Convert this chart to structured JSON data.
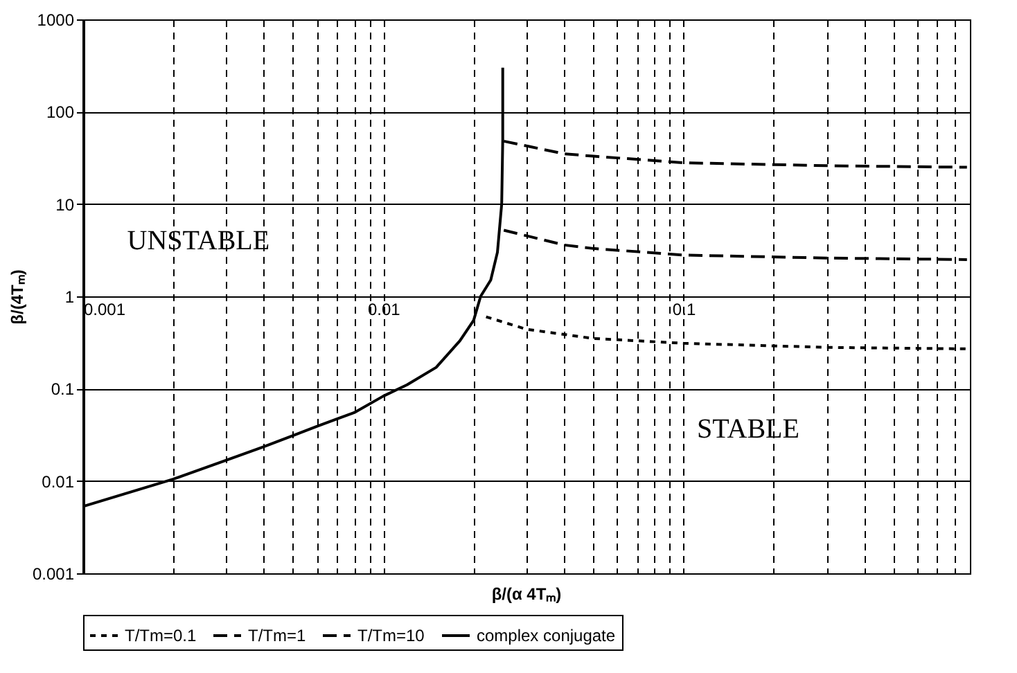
{
  "chart_data": {
    "type": "line",
    "xlabel": "β/(α 4Tₘ)",
    "ylabel": "β/(4Tₘ)",
    "log": "xy",
    "grid": true,
    "legend": "bottom",
    "marker": "none",
    "xlim": [
      0.001,
      0.9
    ],
    "ylim": [
      0.001,
      1000
    ],
    "xticks": [
      0.001,
      {
        "value": 0.002,
        "label": null
      },
      {
        "value": 0.003,
        "label": null
      },
      {
        "value": 0.004,
        "label": null
      },
      {
        "value": 0.005,
        "label": null
      },
      {
        "value": 0.006,
        "label": null
      },
      {
        "value": 0.007,
        "label": null
      },
      {
        "value": 0.008,
        "label": null
      },
      {
        "value": 0.009,
        "label": null
      },
      0.01,
      {
        "value": 0.02,
        "label": null
      },
      {
        "value": 0.03,
        "label": null
      },
      {
        "value": 0.04,
        "label": null
      },
      {
        "value": 0.05,
        "label": null
      },
      {
        "value": 0.06,
        "label": null
      },
      {
        "value": 0.07,
        "label": null
      },
      {
        "value": 0.08,
        "label": null
      },
      {
        "value": 0.09,
        "label": null
      },
      0.1,
      {
        "value": 0.2,
        "label": null
      },
      {
        "value": 0.3,
        "label": null
      },
      {
        "value": 0.4,
        "label": null
      },
      {
        "value": 0.5,
        "label": null
      },
      {
        "value": 0.6,
        "label": null
      },
      {
        "value": 0.7,
        "label": null
      },
      {
        "value": 0.8,
        "label": null
      },
      {
        "value": 0.9,
        "label": null
      }
    ],
    "yticks": [
      0.001,
      0.01,
      0.1,
      1,
      10,
      100,
      1000
    ],
    "annotations": [
      "UNSTABLE",
      "STABLE"
    ],
    "series": [
      {
        "name": "T/Tm=0.1",
        "color": "#000000",
        "line_style": "dotted",
        "x": [
          0.022,
          0.03,
          0.05,
          0.1,
          0.3,
          0.88
        ],
        "values": [
          0.6,
          0.44,
          0.35,
          0.31,
          0.28,
          0.27
        ]
      },
      {
        "name": "T/Tm=1",
        "color": "#000000",
        "line_style": "dashed",
        "x": [
          0.0252,
          0.04,
          0.05,
          0.1,
          0.3,
          0.88
        ],
        "values": [
          5.2,
          3.6,
          3.3,
          2.8,
          2.6,
          2.5
        ]
      },
      {
        "name": "T/Tm=10",
        "color": "#000000",
        "line_style": "dashed",
        "x": [
          0.0252,
          0.04,
          0.05,
          0.1,
          0.3,
          0.88
        ],
        "values": [
          48,
          35,
          33,
          28,
          26,
          25
        ]
      },
      {
        "name": "complex conjugate",
        "color": "#000000",
        "line_style": "solid",
        "x": [
          0.001,
          0.002,
          0.003,
          0.004,
          0.005,
          0.006,
          0.007,
          0.008,
          0.01,
          0.012,
          0.015,
          0.018,
          0.02,
          0.0211,
          0.0228,
          0.024,
          0.0248,
          0.025,
          0.025
        ],
        "values": [
          0.0053,
          0.0105,
          0.0168,
          0.0235,
          0.031,
          0.039,
          0.047,
          0.055,
          0.083,
          0.11,
          0.17,
          0.33,
          0.55,
          1,
          1.5,
          3,
          10,
          50,
          300
        ]
      }
    ]
  }
}
